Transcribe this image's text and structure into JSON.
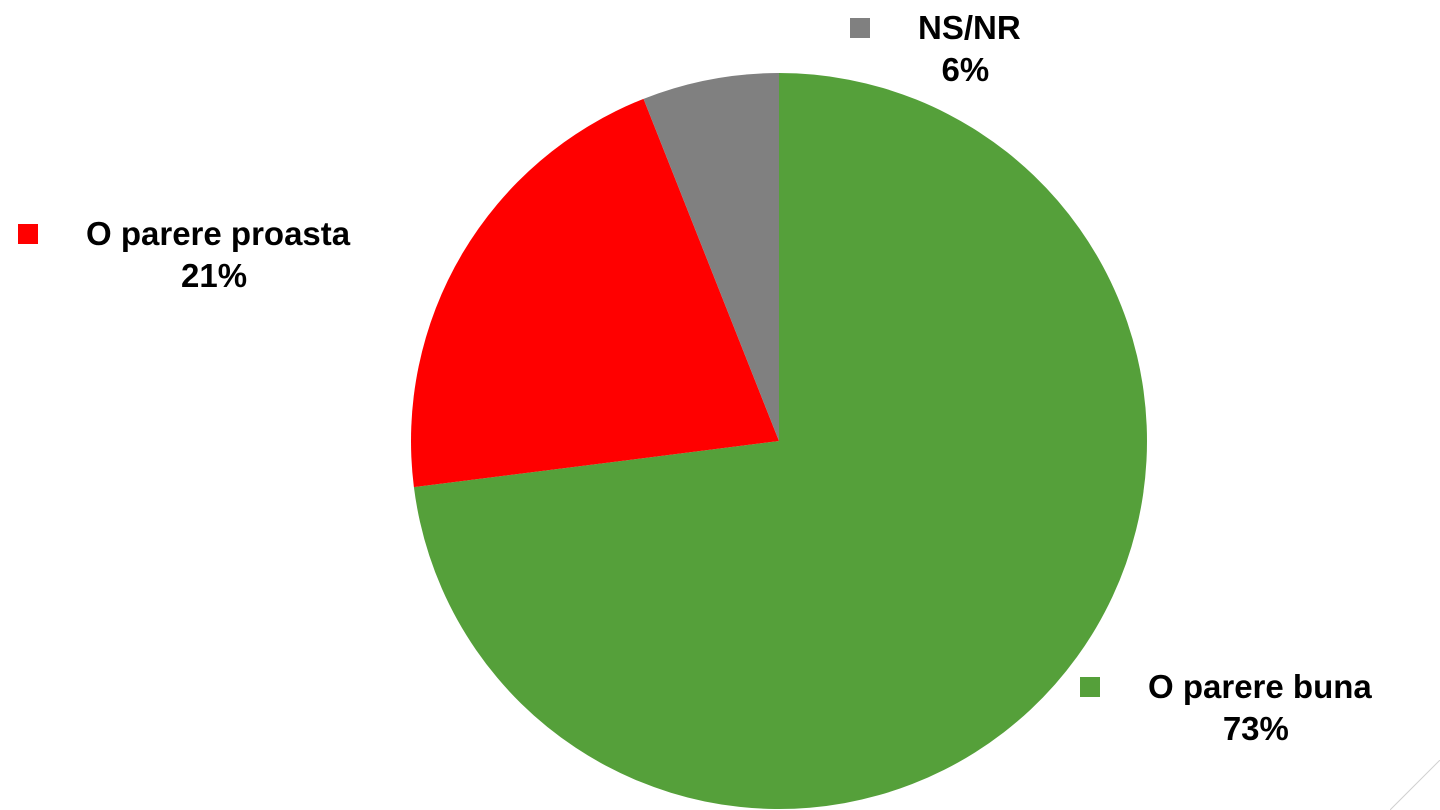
{
  "chart_data": {
    "type": "pie",
    "title": "",
    "start_angle_deg": 0,
    "direction": "clockwise",
    "slices": [
      {
        "label": "O parere buna",
        "value": 73,
        "value_label": "73%",
        "color": "#55a03a"
      },
      {
        "label": "O parere proasta",
        "value": 21,
        "value_label": "21%",
        "color": "#ff0000"
      },
      {
        "label": "NS/NR",
        "value": 6,
        "value_label": "6%",
        "color": "#808080"
      }
    ]
  }
}
